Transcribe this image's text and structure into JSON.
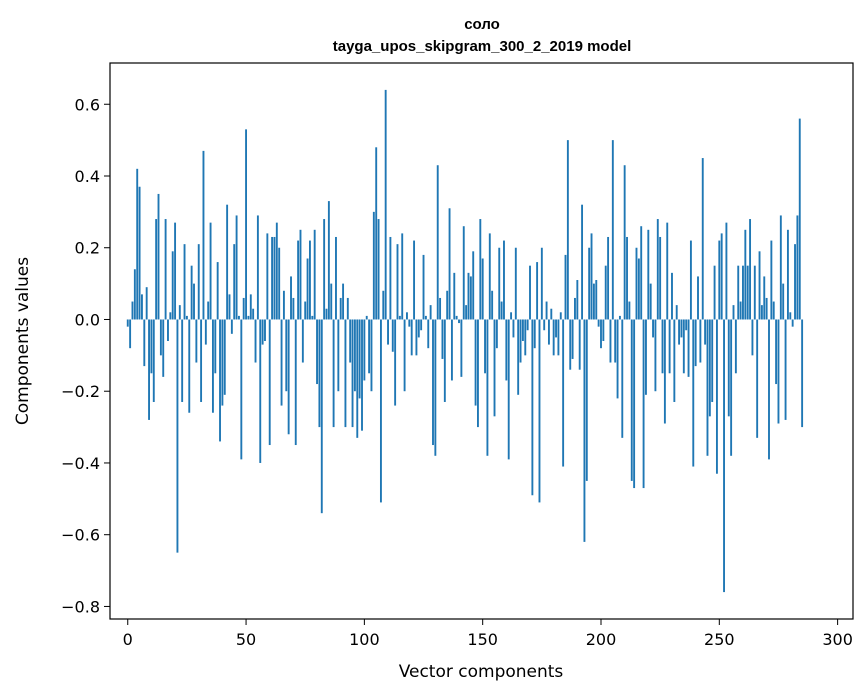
{
  "chart_data": {
    "type": "bar",
    "title": "соло",
    "subtitle": "tayga_upos_skipgram_300_2_2019 model",
    "xlabel": "Vector components",
    "ylabel": "Components values",
    "xlim": [
      -7.5,
      306.5
    ],
    "ylim": [
      -0.835,
      0.715
    ],
    "xticks": [
      0,
      50,
      100,
      150,
      200,
      250,
      300
    ],
    "yticks": [
      -0.8,
      -0.6,
      -0.4,
      -0.2,
      0.0,
      0.2,
      0.4,
      0.6
    ],
    "ytick_labels": [
      "−0.8",
      "−0.6",
      "−0.4",
      "−0.2",
      "0.0",
      "0.2",
      "0.4",
      "0.6"
    ],
    "grid": false,
    "bar_color": "#1f77b4",
    "x_start": 0,
    "values": [
      -0.02,
      -0.08,
      0.05,
      0.14,
      0.42,
      0.37,
      0.07,
      -0.13,
      0.09,
      -0.28,
      -0.15,
      -0.23,
      0.28,
      0.35,
      -0.1,
      -0.16,
      0.28,
      -0.06,
      0.02,
      0.19,
      0.27,
      -0.65,
      0.04,
      -0.23,
      0.21,
      0.01,
      -0.26,
      0.15,
      0.1,
      -0.12,
      0.21,
      -0.23,
      0.47,
      -0.07,
      0.05,
      0.27,
      -0.26,
      -0.15,
      0.16,
      -0.34,
      -0.24,
      -0.21,
      0.32,
      0.07,
      -0.04,
      0.21,
      0.29,
      0.01,
      -0.39,
      0.06,
      0.53,
      0.01,
      0.07,
      0.03,
      -0.12,
      0.29,
      -0.4,
      -0.07,
      -0.06,
      0.24,
      -0.35,
      0.23,
      0.23,
      0.27,
      0.2,
      -0.24,
      0.08,
      -0.2,
      -0.32,
      0.12,
      0.06,
      -0.35,
      0.22,
      0.25,
      -0.12,
      0.05,
      0.17,
      0.22,
      0.01,
      0.25,
      -0.18,
      -0.3,
      -0.54,
      0.28,
      0.03,
      0.33,
      0.1,
      -0.3,
      0.23,
      -0.2,
      0.06,
      0.1,
      -0.3,
      0.06,
      -0.12,
      -0.3,
      -0.2,
      -0.33,
      -0.22,
      -0.31,
      -0.17,
      0.01,
      -0.15,
      -0.2,
      0.3,
      0.48,
      0.28,
      -0.51,
      0.08,
      0.64,
      -0.07,
      0.23,
      -0.09,
      -0.24,
      0.21,
      0.01,
      0.24,
      -0.2,
      0.02,
      -0.02,
      -0.1,
      0.22,
      -0.1,
      -0.05,
      -0.03,
      0.18,
      0.01,
      -0.08,
      0.04,
      -0.35,
      -0.38,
      0.43,
      0.06,
      -0.11,
      -0.23,
      0.08,
      0.31,
      -0.17,
      0.13,
      0.01,
      -0.01,
      -0.16,
      0.26,
      0.04,
      0.13,
      0.12,
      0.19,
      -0.24,
      -0.3,
      0.28,
      0.17,
      -0.15,
      -0.38,
      0.24,
      0.08,
      -0.27,
      -0.08,
      0.2,
      0.05,
      0.22,
      -0.17,
      -0.39,
      0.02,
      -0.05,
      0.2,
      -0.21,
      -0.12,
      -0.06,
      -0.1,
      -0.03,
      0.15,
      -0.49,
      -0.08,
      0.16,
      -0.51,
      0.2,
      -0.03,
      0.05,
      -0.07,
      0.03,
      -0.1,
      -0.05,
      -0.1,
      0.02,
      -0.41,
      0.18,
      0.5,
      -0.14,
      -0.11,
      0.06,
      0.11,
      -0.14,
      0.32,
      -0.62,
      -0.45,
      0.2,
      0.24,
      0.1,
      0.11,
      -0.02,
      -0.08,
      -0.06,
      0.15,
      0.23,
      -0.12,
      0.5,
      -0.12,
      -0.22,
      0.01,
      -0.33,
      0.43,
      0.23,
      0.05,
      -0.45,
      -0.47,
      0.2,
      0.17,
      0.26,
      -0.47,
      -0.21,
      0.25,
      0.1,
      -0.05,
      -0.2,
      0.28,
      0.23,
      -0.15,
      -0.29,
      0.27,
      -0.15,
      0.13,
      -0.23,
      0.04,
      -0.07,
      -0.05,
      -0.15,
      -0.03,
      -0.16,
      0.22,
      -0.41,
      -0.13,
      0.12,
      -0.12,
      0.45,
      -0.07,
      -0.38,
      -0.27,
      -0.23,
      0.15,
      -0.43,
      0.22,
      0.24,
      -0.76,
      0.27,
      -0.27,
      -0.38,
      0.04,
      -0.15,
      0.15,
      0.05,
      0.15,
      0.25,
      0.15,
      0.28,
      -0.1,
      0.15,
      -0.33,
      0.19,
      0.04,
      0.12,
      0.06,
      -0.39,
      0.22,
      0.05,
      -0.18,
      -0.29,
      0.29,
      0.1,
      -0.28,
      0.25,
      0.02,
      -0.02,
      0.21,
      0.29,
      0.56,
      -0.3
    ]
  }
}
